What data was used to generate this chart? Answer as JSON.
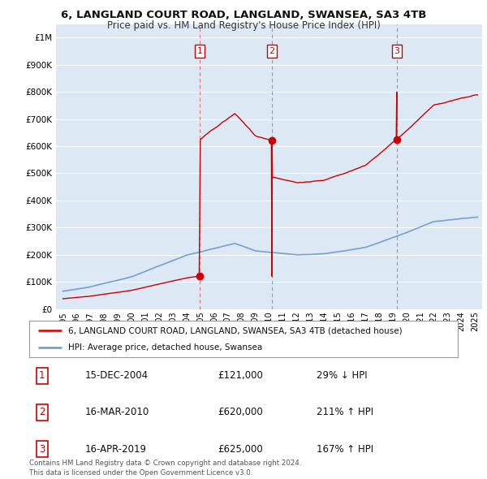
{
  "title": "6, LANGLAND COURT ROAD, LANGLAND, SWANSEA, SA3 4TB",
  "subtitle": "Price paid vs. HM Land Registry's House Price Index (HPI)",
  "ylim": [
    0,
    1050000
  ],
  "xlim": [
    1994.5,
    2025.5
  ],
  "background_color": "#dce9f5",
  "grid_color": "#ffffff",
  "sale_color": "#cc0000",
  "hpi_color": "#6699cc",
  "vline_color": "#e87878",
  "shade_color": "#dce9f5",
  "sales": [
    {
      "year": 2004.96,
      "price": 121000,
      "label": "1"
    },
    {
      "year": 2010.21,
      "price": 620000,
      "label": "2"
    },
    {
      "year": 2019.29,
      "price": 625000,
      "label": "3"
    }
  ],
  "table_rows": [
    [
      "1",
      "15-DEC-2004",
      "£121,000",
      "29% ↓ HPI"
    ],
    [
      "2",
      "16-MAR-2010",
      "£620,000",
      "211% ↑ HPI"
    ],
    [
      "3",
      "16-APR-2019",
      "£625,000",
      "167% ↑ HPI"
    ]
  ],
  "legend_entries": [
    "6, LANGLAND COURT ROAD, LANGLAND, SWANSEA, SA3 4TB (detached house)",
    "HPI: Average price, detached house, Swansea"
  ],
  "footer": "Contains HM Land Registry data © Crown copyright and database right 2024.\nThis data is licensed under the Open Government Licence v3.0.",
  "yticks": [
    0,
    100000,
    200000,
    300000,
    400000,
    500000,
    600000,
    700000,
    800000,
    900000,
    1000000
  ],
  "ytick_labels": [
    "£0",
    "£100K",
    "£200K",
    "£300K",
    "£400K",
    "£500K",
    "£600K",
    "£700K",
    "£800K",
    "£900K",
    "£1M"
  ]
}
